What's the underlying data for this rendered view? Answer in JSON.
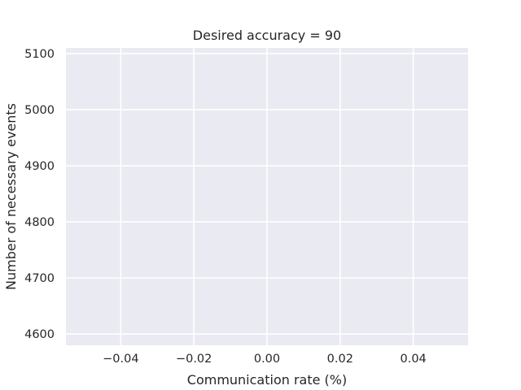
{
  "chart_data": {
    "type": "line",
    "title": "Desired accuracy = 90",
    "xlabel": "Communication rate (%)",
    "ylabel": "Number of necessary events",
    "xlim": [
      -0.055,
      0.055
    ],
    "ylim": [
      4580,
      5110
    ],
    "xticks": [
      -0.04,
      -0.02,
      0.0,
      0.02,
      0.04
    ],
    "xtick_labels": [
      "−0.04",
      "−0.02",
      "0.00",
      "0.02",
      "0.04"
    ],
    "yticks": [
      4600,
      4700,
      4800,
      4900,
      5000,
      5100
    ],
    "ytick_labels": [
      "4600",
      "4700",
      "4800",
      "4900",
      "5000",
      "5100"
    ],
    "series": [],
    "grid": true,
    "background": "#eaeaf2",
    "grid_color": "#ffffff"
  }
}
